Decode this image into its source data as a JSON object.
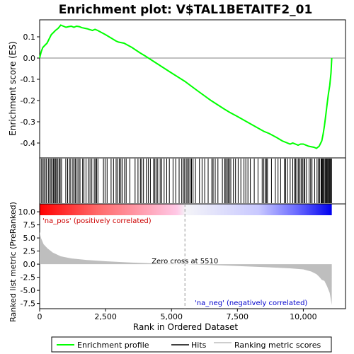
{
  "chart_data": {
    "type": "line",
    "title": "Enrichment plot: V$TAL1BETAITF2_01",
    "x_axis": {
      "label": "Rank in Ordered Dataset",
      "range": [
        0,
        11600
      ],
      "ticks": [
        0,
        2500,
        5000,
        7500,
        10000
      ],
      "tick_labels": [
        "0",
        "2,500",
        "5,000",
        "7,500",
        "10,000"
      ]
    },
    "es_panel": {
      "ylabel": "Enrichment score (ES)",
      "ylim": [
        -0.47,
        0.18
      ],
      "yticks": [
        0.1,
        0.0,
        -0.1,
        -0.2,
        -0.3,
        -0.4
      ],
      "ytick_labels": [
        "0.1",
        "0.0",
        "-0.1",
        "-0.2",
        "-0.3",
        "-0.4"
      ],
      "series": {
        "name": "Enrichment profile",
        "color": "#00ff00",
        "x": [
          0,
          60,
          120,
          200,
          280,
          360,
          440,
          520,
          600,
          700,
          800,
          900,
          1000,
          1100,
          1200,
          1300,
          1400,
          1500,
          1600,
          1800,
          2000,
          2100,
          2200,
          2500,
          2700,
          2900,
          3000,
          3200,
          3500,
          3800,
          4000,
          4500,
          5000,
          5510,
          6000,
          6500,
          7000,
          7200,
          7500,
          8000,
          8500,
          8700,
          9000,
          9200,
          9500,
          9600,
          9800,
          9900,
          10000,
          10200,
          10400,
          10500,
          10600,
          10700,
          10750,
          10800,
          10850,
          10900,
          10950,
          11000,
          11050,
          11080
        ],
        "values": [
          0.0,
          0.03,
          0.05,
          0.06,
          0.07,
          0.09,
          0.11,
          0.12,
          0.13,
          0.14,
          0.155,
          0.15,
          0.145,
          0.148,
          0.15,
          0.145,
          0.15,
          0.148,
          0.143,
          0.138,
          0.13,
          0.135,
          0.13,
          0.11,
          0.095,
          0.08,
          0.075,
          0.07,
          0.05,
          0.025,
          0.01,
          -0.03,
          -0.07,
          -0.11,
          -0.155,
          -0.2,
          -0.24,
          -0.255,
          -0.275,
          -0.31,
          -0.345,
          -0.355,
          -0.375,
          -0.39,
          -0.405,
          -0.4,
          -0.41,
          -0.405,
          -0.405,
          -0.415,
          -0.42,
          -0.425,
          -0.415,
          -0.39,
          -0.36,
          -0.32,
          -0.27,
          -0.22,
          -0.17,
          -0.13,
          -0.07,
          0.0
        ]
      },
      "baseline": 0.0
    },
    "hits_panel": {
      "label": "Hits",
      "hit_ranks": [
        60,
        110,
        160,
        210,
        260,
        330,
        380,
        430,
        470,
        520,
        560,
        600,
        640,
        690,
        740,
        780,
        830,
        990,
        1060,
        1130,
        1180,
        1260,
        1310,
        1360,
        1420,
        1480,
        1530,
        1630,
        1680,
        1760,
        1840,
        1910,
        1980,
        2070,
        2120,
        2160,
        2210,
        2420,
        2480,
        2560,
        2710,
        2800,
        2900,
        2960,
        3020,
        3080,
        3130,
        3220,
        3280,
        3420,
        3620,
        3730,
        3820,
        3870,
        3940,
        4040,
        4120,
        4200,
        4320,
        4370,
        4420,
        4480,
        4570,
        4630,
        4720,
        4820,
        4920,
        5060,
        5160,
        5290,
        5390,
        5450,
        5500,
        5560,
        5610,
        5660,
        5710,
        5760,
        5820,
        5910,
        6060,
        6160,
        6260,
        6390,
        6530,
        6580,
        6660,
        6760,
        6930,
        7020,
        7060,
        7110,
        7150,
        7200,
        7250,
        7350,
        7430,
        7530,
        7630,
        7750,
        7820,
        7900,
        7990,
        8140,
        8280,
        8440,
        8500,
        8560,
        8600,
        8640,
        8790,
        8940,
        9040,
        9140,
        9280,
        9330,
        9400,
        9500,
        9600,
        9660,
        9710,
        9760,
        9820,
        9870,
        9920,
        9970,
        10020,
        10060,
        10120,
        10220,
        10280,
        10330,
        10430,
        10520,
        10570,
        10620,
        10670,
        10700,
        10730,
        10760,
        10790,
        10830,
        10860,
        10890,
        10920,
        10950,
        10980,
        11010,
        11040,
        11070
      ]
    },
    "rank_panel": {
      "ylabel": "Ranked list metric (PreRanked)",
      "ylim": [
        -8.5,
        11.5
      ],
      "yticks": [
        10.0,
        7.5,
        5.0,
        2.5,
        0.0,
        -2.5,
        -5.0,
        -7.5
      ],
      "ytick_labels": [
        "10.0",
        "7.5",
        "5.0",
        "2.5",
        "0.0",
        "-2.5",
        "-5.0",
        "-7.5"
      ],
      "x": [
        0,
        50,
        150,
        300,
        500,
        800,
        1200,
        1800,
        2500,
        3500,
        4500,
        5510,
        6500,
        7500,
        8500,
        9500,
        10000,
        10300,
        10500,
        10600,
        10700,
        10800,
        10900,
        11000,
        11080
      ],
      "values": [
        6.2,
        5.0,
        3.8,
        3.0,
        2.2,
        1.5,
        1.1,
        0.8,
        0.55,
        0.3,
        0.12,
        0.0,
        -0.15,
        -0.35,
        -0.55,
        -0.8,
        -1.0,
        -1.4,
        -1.9,
        -2.4,
        -3.0,
        -3.2,
        -4.2,
        -5.5,
        -7.8
      ],
      "color": "#bebebe",
      "zero_cross": 5510,
      "zero_cross_label": "Zero cross at 5510"
    },
    "annotations": {
      "pos_label": "'na_pos' (positively correlated)",
      "neg_label": "'na_neg' (negatively correlated)",
      "pos_color": "#cc0000",
      "neg_color": "#0000cc"
    },
    "legend": {
      "placement": "bottom",
      "items": [
        {
          "label": "Enrichment profile",
          "color": "#00ff00"
        },
        {
          "label": "Hits",
          "color": "#000000"
        },
        {
          "label": "Ranking metric scores",
          "color": "#bebebe"
        }
      ]
    }
  }
}
